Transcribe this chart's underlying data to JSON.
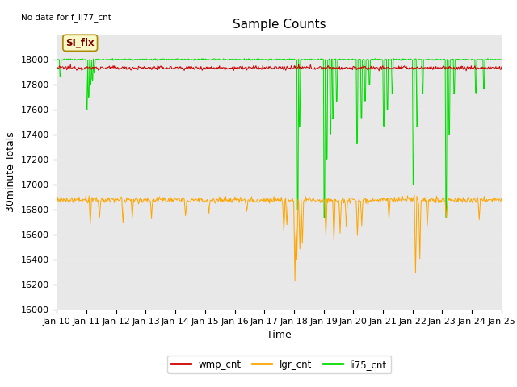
{
  "title": "Sample Counts",
  "xlabel": "Time",
  "ylabel": "30minute Totals",
  "top_left_text": "No data for f_li77_cnt",
  "annotation_text": "SI_flx",
  "ylim": [
    16000,
    18200
  ],
  "yticks": [
    16000,
    16200,
    16400,
    16600,
    16800,
    17000,
    17200,
    17400,
    17600,
    17800,
    18000
  ],
  "xtick_labels": [
    "Jan 10",
    "Jan 11",
    "Jan 12",
    "Jan 13",
    "Jan 14",
    "Jan 15",
    "Jan 16",
    "Jan 17",
    "Jan 18",
    "Jan 19",
    "Jan 20",
    "Jan 21",
    "Jan 22",
    "Jan 23",
    "Jan 24",
    "Jan 25"
  ],
  "wmp_color": "#cc0000",
  "lgr_color": "#ffa500",
  "li75_color": "#00dd00",
  "background_color": "#e8e8e8",
  "wmp_base": 17935,
  "lgr_base": 16878,
  "li75_base": 18002,
  "legend_entries": [
    "wmp_cnt",
    "lgr_cnt",
    "li75_cnt"
  ],
  "title_fontsize": 11,
  "axis_fontsize": 8,
  "ylabel_fontsize": 9,
  "figwidth": 6.4,
  "figheight": 4.8,
  "dpi": 100
}
